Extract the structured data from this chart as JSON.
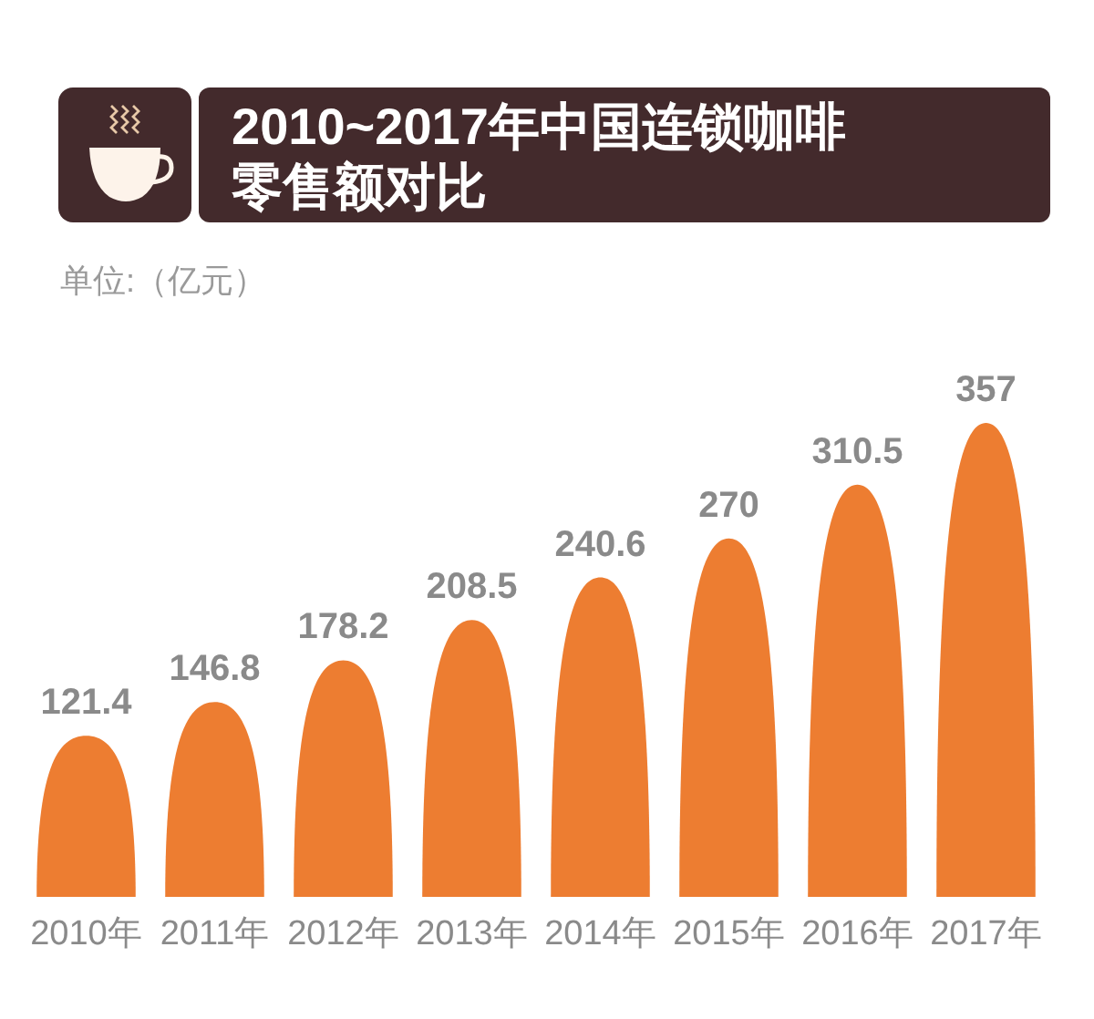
{
  "chart_data": {
    "type": "bar",
    "title": "2010~2017年中国连锁咖啡零售额对比",
    "subtitle": "单位:（亿元）",
    "categories": [
      "2010年",
      "2011年",
      "2012年",
      "2013年",
      "2014年",
      "2015年",
      "2016年",
      "2017年"
    ],
    "values": [
      121.4,
      146.8,
      178.2,
      208.5,
      240.6,
      270,
      310.5,
      357
    ],
    "color": "#ed7d31",
    "data_labels": true
  }
}
